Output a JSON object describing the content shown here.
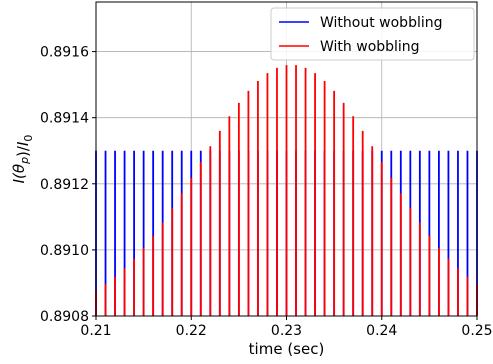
{
  "chart_data": {
    "type": "line",
    "title": "",
    "xlabel": "time (sec)",
    "ylabel": "I(θp)/I0",
    "xlim": [
      0.21,
      0.25
    ],
    "ylim": [
      0.8908,
      0.89175
    ],
    "grid": true,
    "legend_position": "top-right",
    "x_ticks": [
      "0.21",
      "0.22",
      "0.23",
      "0.24",
      "0.25"
    ],
    "y_ticks": [
      "0.8908",
      "0.8910",
      "0.8912",
      "0.8914",
      "0.8916"
    ],
    "spike_spacing_sec": 0.001,
    "series": [
      {
        "name": "Without wobbling",
        "color": "#0000ff",
        "baseline": 0.8908,
        "peak_value": 0.8913,
        "spike_start": 0.21,
        "spike_end": 0.25
      },
      {
        "name": "With wobbling",
        "color": "#ff0000",
        "baseline": 0.8908,
        "spike_start": 0.21,
        "spike_end": 0.25,
        "envelope": {
          "shape": "gaussian",
          "center": 0.2305,
          "peak_value": 0.89156,
          "sigma": 0.0096,
          "floor_value": 0.8908
        }
      }
    ]
  }
}
